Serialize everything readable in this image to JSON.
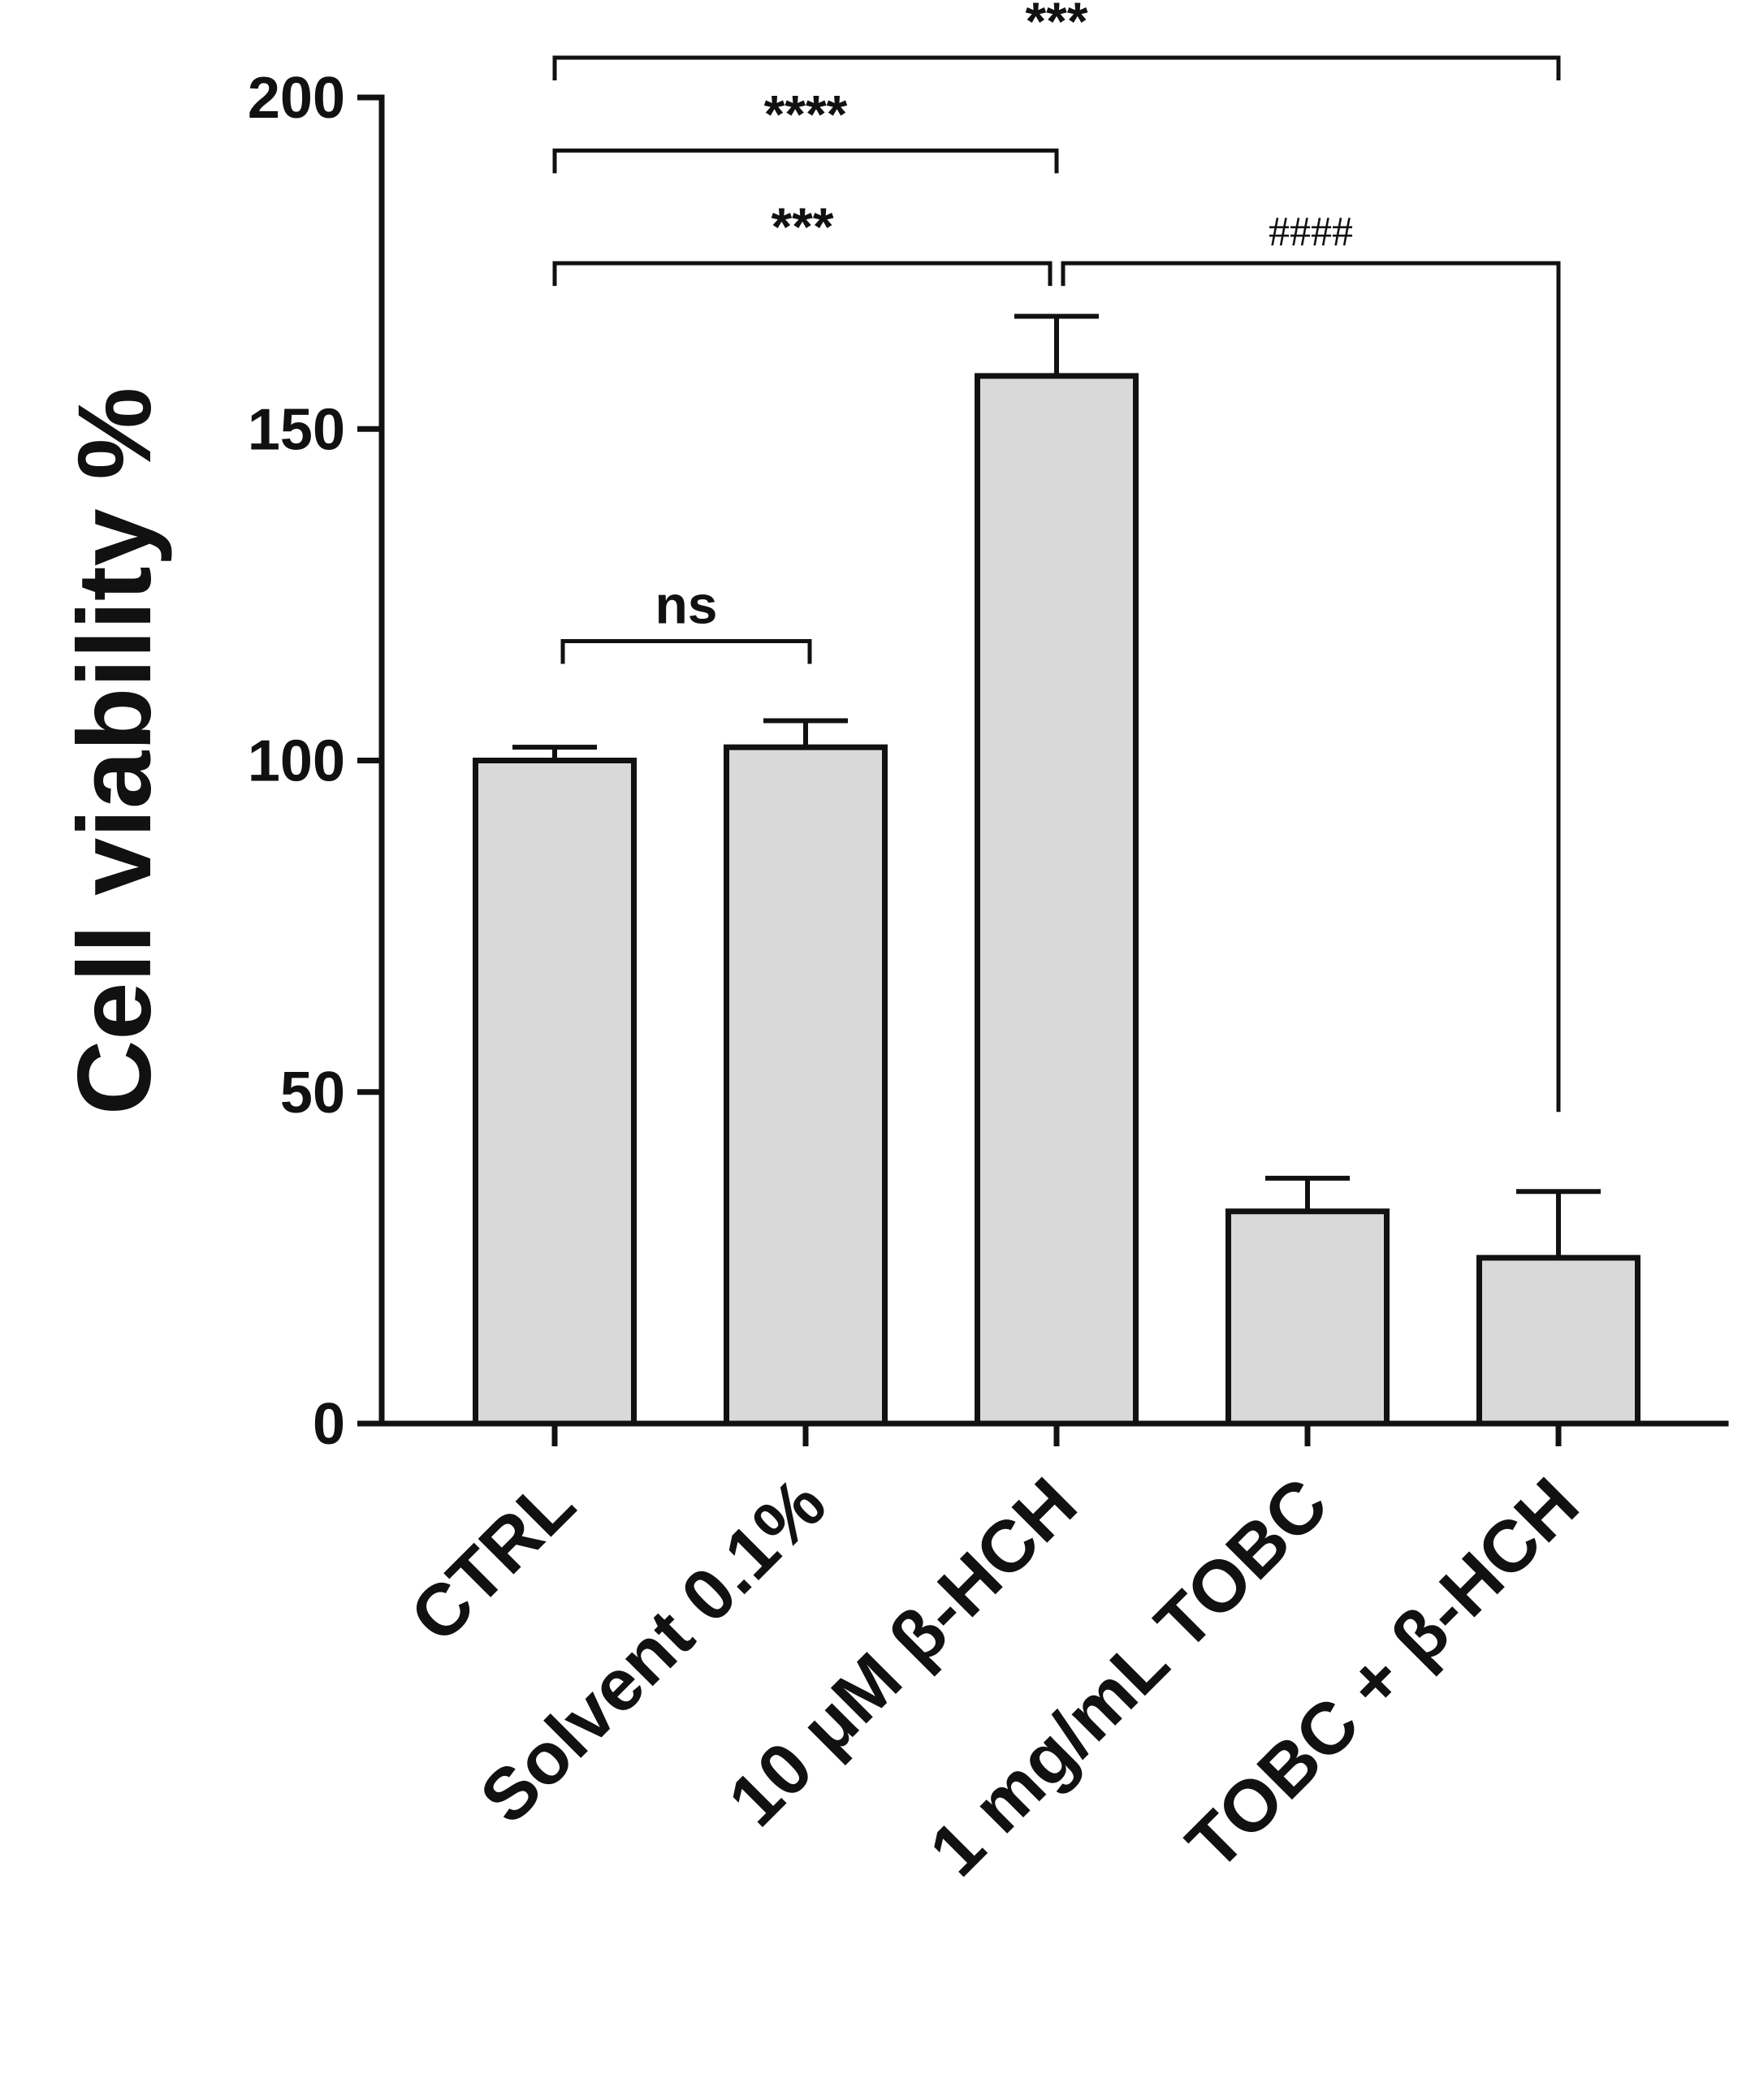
{
  "chart_data": {
    "type": "bar",
    "title": "",
    "xlabel": "",
    "ylabel": "Cell viability %",
    "ylim": [
      0,
      200
    ],
    "yticks": [
      0,
      50,
      100,
      150,
      200
    ],
    "categories": [
      "CTRL",
      "Solvent 0.1%",
      "10 μM β-HCH",
      "1 mg/mL TOBC",
      "TOBC + β-HCH"
    ],
    "values": [
      100,
      102,
      158,
      32,
      25
    ],
    "errors": [
      2,
      4,
      9,
      5,
      10
    ],
    "bar_color": "#d9d9d9",
    "grid": false,
    "legend": "none",
    "annotations": [
      {
        "from": 0,
        "to": 4,
        "label": "***",
        "level": 1,
        "y": 206,
        "kind": "star"
      },
      {
        "from": 0,
        "to": 2,
        "label": "****",
        "level": 2,
        "y": 192,
        "kind": "star"
      },
      {
        "from": 0,
        "to": 2,
        "label": "***",
        "level": 3,
        "y": 175,
        "kind": "star"
      },
      {
        "from": 2,
        "to": 4,
        "label": "####",
        "level": 3,
        "y": 175,
        "kind": "hash",
        "right_drop_to": 47
      },
      {
        "from": 0,
        "to": 1,
        "label": "ns",
        "level": 4,
        "y": 118,
        "kind": "star"
      }
    ]
  }
}
